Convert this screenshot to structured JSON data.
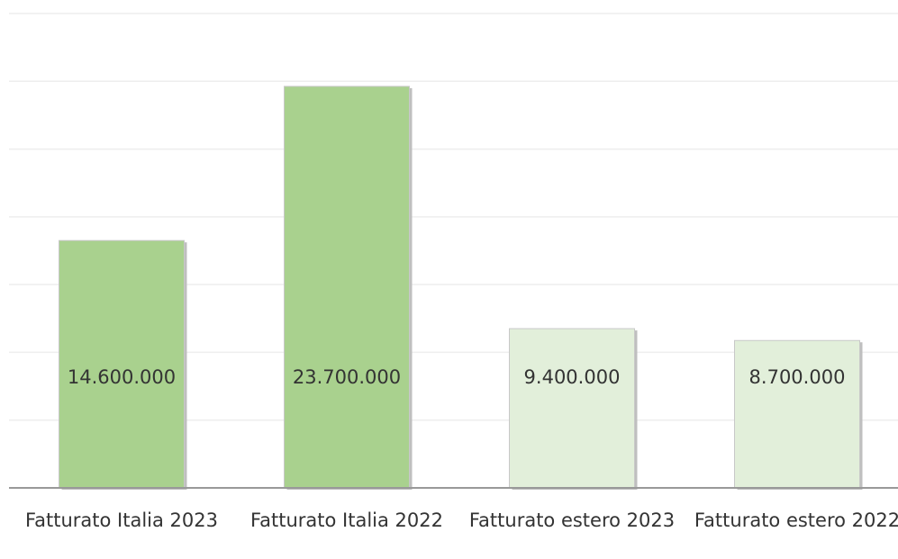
{
  "chart_data": {
    "type": "bar",
    "categories": [
      "Fatturato Italia 2023",
      "Fatturato Italia 2022",
      "Fatturato estero 2023",
      "Fatturato estero 2022"
    ],
    "values": [
      14600000,
      23700000,
      9400000,
      8700000
    ],
    "value_labels": [
      "14.600.000",
      "23.700.000",
      "9.400.000",
      "8.700.000"
    ],
    "colors": [
      "#a9d18e",
      "#a9d18e",
      "#e2efda",
      "#e2efda"
    ],
    "ylim": [
      0,
      28000000
    ],
    "yticks": [
      0,
      4000000,
      8000000,
      12000000,
      16000000,
      20000000,
      24000000,
      28000000
    ],
    "grid": true
  }
}
